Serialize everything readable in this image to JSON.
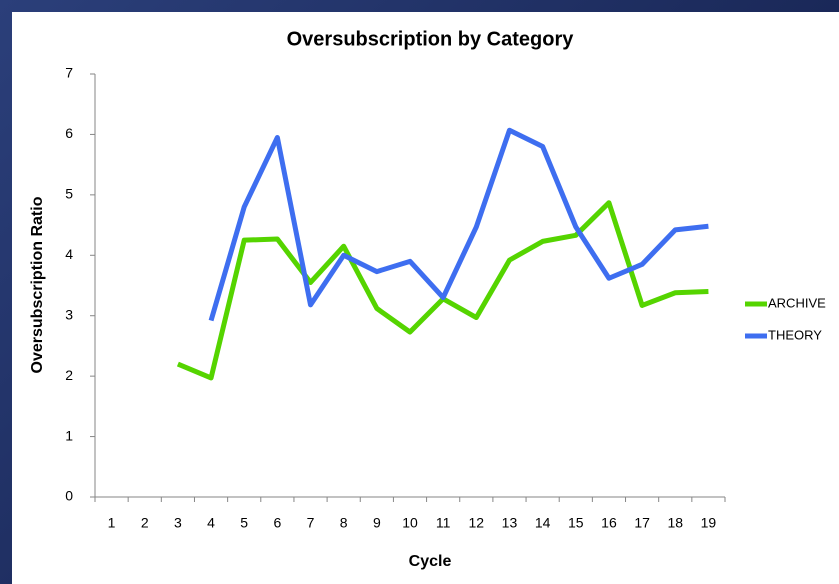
{
  "chart_data": {
    "type": "line",
    "title": "Oversubscription by Category",
    "x_label": "Cycle",
    "y_label": "Oversubscription Ratio",
    "categories": [
      "1",
      "2",
      "3",
      "4",
      "5",
      "6",
      "7",
      "8",
      "9",
      "10",
      "11",
      "12",
      "13",
      "14",
      "15",
      "16",
      "17",
      "18",
      "19"
    ],
    "series": [
      {
        "name": "ARCHIVE",
        "color": "#55d400",
        "values": [
          null,
          null,
          2.2,
          1.97,
          4.25,
          4.27,
          3.55,
          4.15,
          3.12,
          2.73,
          3.28,
          2.97,
          3.92,
          4.23,
          4.33,
          4.87,
          3.17,
          3.38,
          3.4
        ]
      },
      {
        "name": "THEORY",
        "color": "#3e6ef0",
        "values": [
          null,
          null,
          null,
          2.92,
          4.8,
          5.95,
          3.18,
          4.0,
          3.73,
          3.9,
          3.3,
          4.47,
          6.07,
          5.8,
          4.47,
          3.62,
          3.85,
          4.42,
          4.48
        ]
      }
    ],
    "ylim": [
      0,
      7
    ],
    "yticks": [
      0,
      1,
      2,
      3,
      4,
      5,
      6,
      7
    ],
    "grid": false,
    "legend": "right"
  }
}
